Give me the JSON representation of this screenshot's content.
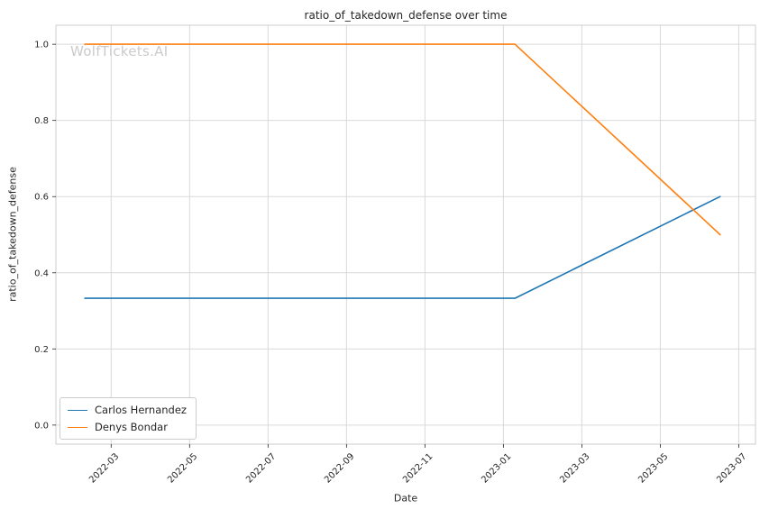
{
  "chart_data": {
    "type": "line",
    "title": "ratio_of_takedown_defense over time",
    "xlabel": "Date",
    "ylabel": "ratio_of_takedown_defense",
    "watermark": "WolfTickets.AI",
    "x_ticks": [
      "2022-03",
      "2022-05",
      "2022-07",
      "2022-09",
      "2022-11",
      "2023-01",
      "2023-03",
      "2023-05",
      "2023-07"
    ],
    "y_ticks": [
      0.0,
      0.2,
      0.4,
      0.6,
      0.8,
      1.0
    ],
    "xlim": [
      "2022-01-19",
      "2023-07-14"
    ],
    "ylim": [
      -0.05,
      1.05
    ],
    "grid": true,
    "legend_position": "lower left",
    "series": [
      {
        "name": "Carlos Hernandez",
        "color": "#1f77b4",
        "points": [
          [
            "2022-02-11",
            0.333
          ],
          [
            "2023-01-10",
            0.333
          ],
          [
            "2023-06-17",
            0.6
          ]
        ]
      },
      {
        "name": "Denys Bondar",
        "color": "#ff7f0e",
        "points": [
          [
            "2022-02-11",
            1.0
          ],
          [
            "2023-01-10",
            1.0
          ],
          [
            "2023-06-17",
            0.5
          ]
        ]
      }
    ],
    "colors": {
      "grid": "#d9d9d9",
      "spine": "#cccccc",
      "tick_text": "#262626",
      "watermark": "#cbcbcb"
    }
  }
}
